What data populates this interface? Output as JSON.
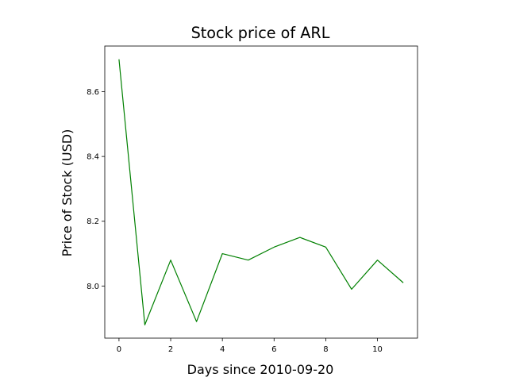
{
  "chart_data": {
    "type": "line",
    "title": "Stock price of ARL",
    "xlabel": "Days since 2010-09-20",
    "ylabel": "Price of Stock (USD)",
    "x": [
      0,
      1,
      2,
      3,
      4,
      5,
      6,
      7,
      8,
      9,
      10,
      11
    ],
    "series": [
      {
        "values": [
          8.7,
          7.88,
          8.08,
          7.89,
          8.1,
          8.08,
          8.12,
          8.15,
          8.12,
          7.99,
          8.08,
          8.01
        ],
        "color": "#008000"
      }
    ],
    "xlim": [
      -0.55,
      11.55
    ],
    "ylim": [
      7.839,
      8.741
    ],
    "xticks": [
      0,
      2,
      4,
      6,
      8,
      10
    ],
    "xtick_labels": [
      "0",
      "2",
      "4",
      "6",
      "8",
      "10"
    ],
    "yticks": [
      8.0,
      8.2,
      8.4,
      8.6
    ],
    "ytick_labels": [
      "8.0",
      "8.2",
      "8.4",
      "8.6"
    ],
    "grid": false,
    "legend": "none"
  }
}
